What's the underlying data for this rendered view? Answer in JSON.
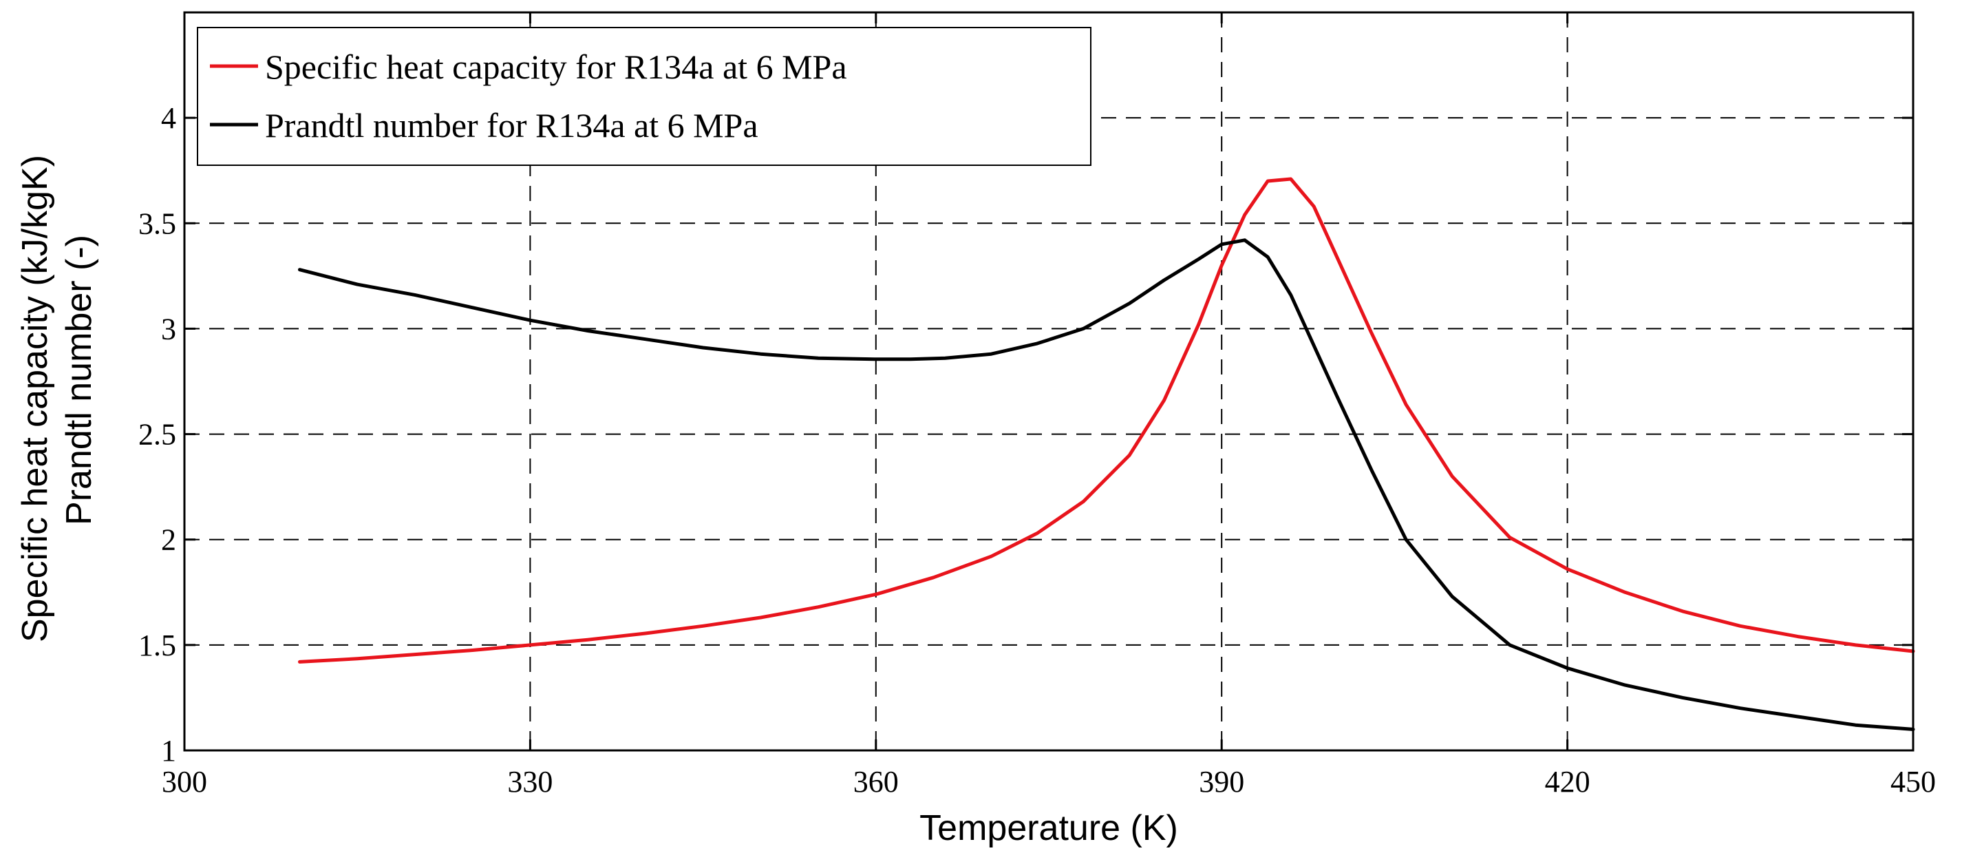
{
  "chart_data": {
    "type": "line",
    "title": "",
    "xlabel": "Temperature (K)",
    "ylabel_lines": [
      "Specific heat capacity (kJ/kgK)",
      "Prandtl number (-)"
    ],
    "xlim": [
      300,
      450
    ],
    "ylim": [
      1,
      4.5
    ],
    "xticks": [
      300,
      330,
      360,
      390,
      420,
      450
    ],
    "yticks": [
      1,
      1.5,
      2,
      2.5,
      3,
      3.5,
      4
    ],
    "ytick_labels": [
      "1",
      "1.5",
      "2",
      "2.5",
      "3",
      "3.5",
      "4"
    ],
    "grid": true,
    "legend_position": "top-left",
    "series": [
      {
        "name": "Specific heat capacity for R134a at 6 MPa",
        "color": "#e8141c",
        "x": [
          310,
          315,
          320,
          325,
          330,
          335,
          340,
          345,
          350,
          355,
          360,
          365,
          370,
          374,
          378,
          382,
          385,
          388,
          390,
          392,
          394,
          396,
          398,
          400,
          403,
          406,
          410,
          415,
          420,
          425,
          430,
          435,
          440,
          445,
          450
        ],
        "y": [
          1.42,
          1.435,
          1.455,
          1.475,
          1.5,
          1.525,
          1.555,
          1.59,
          1.63,
          1.68,
          1.74,
          1.82,
          1.92,
          2.03,
          2.18,
          2.4,
          2.66,
          3.02,
          3.3,
          3.54,
          3.7,
          3.71,
          3.58,
          3.34,
          2.98,
          2.64,
          2.3,
          2.01,
          1.86,
          1.75,
          1.66,
          1.59,
          1.54,
          1.5,
          1.47
        ]
      },
      {
        "name": "Prandtl number for R134a at 6 MPa",
        "color": "#000000",
        "x": [
          310,
          315,
          320,
          325,
          330,
          335,
          340,
          345,
          350,
          355,
          360,
          363,
          366,
          370,
          374,
          378,
          382,
          385,
          388,
          390,
          392,
          394,
          396,
          398,
          400,
          403,
          406,
          410,
          415,
          420,
          425,
          430,
          435,
          440,
          445,
          450
        ],
        "y": [
          3.28,
          3.21,
          3.16,
          3.1,
          3.04,
          2.99,
          2.95,
          2.91,
          2.88,
          2.86,
          2.855,
          2.855,
          2.86,
          2.88,
          2.93,
          3.0,
          3.12,
          3.23,
          3.33,
          3.4,
          3.42,
          3.34,
          3.16,
          2.92,
          2.68,
          2.33,
          2.0,
          1.73,
          1.5,
          1.39,
          1.31,
          1.25,
          1.2,
          1.16,
          1.12,
          1.1
        ]
      }
    ]
  }
}
